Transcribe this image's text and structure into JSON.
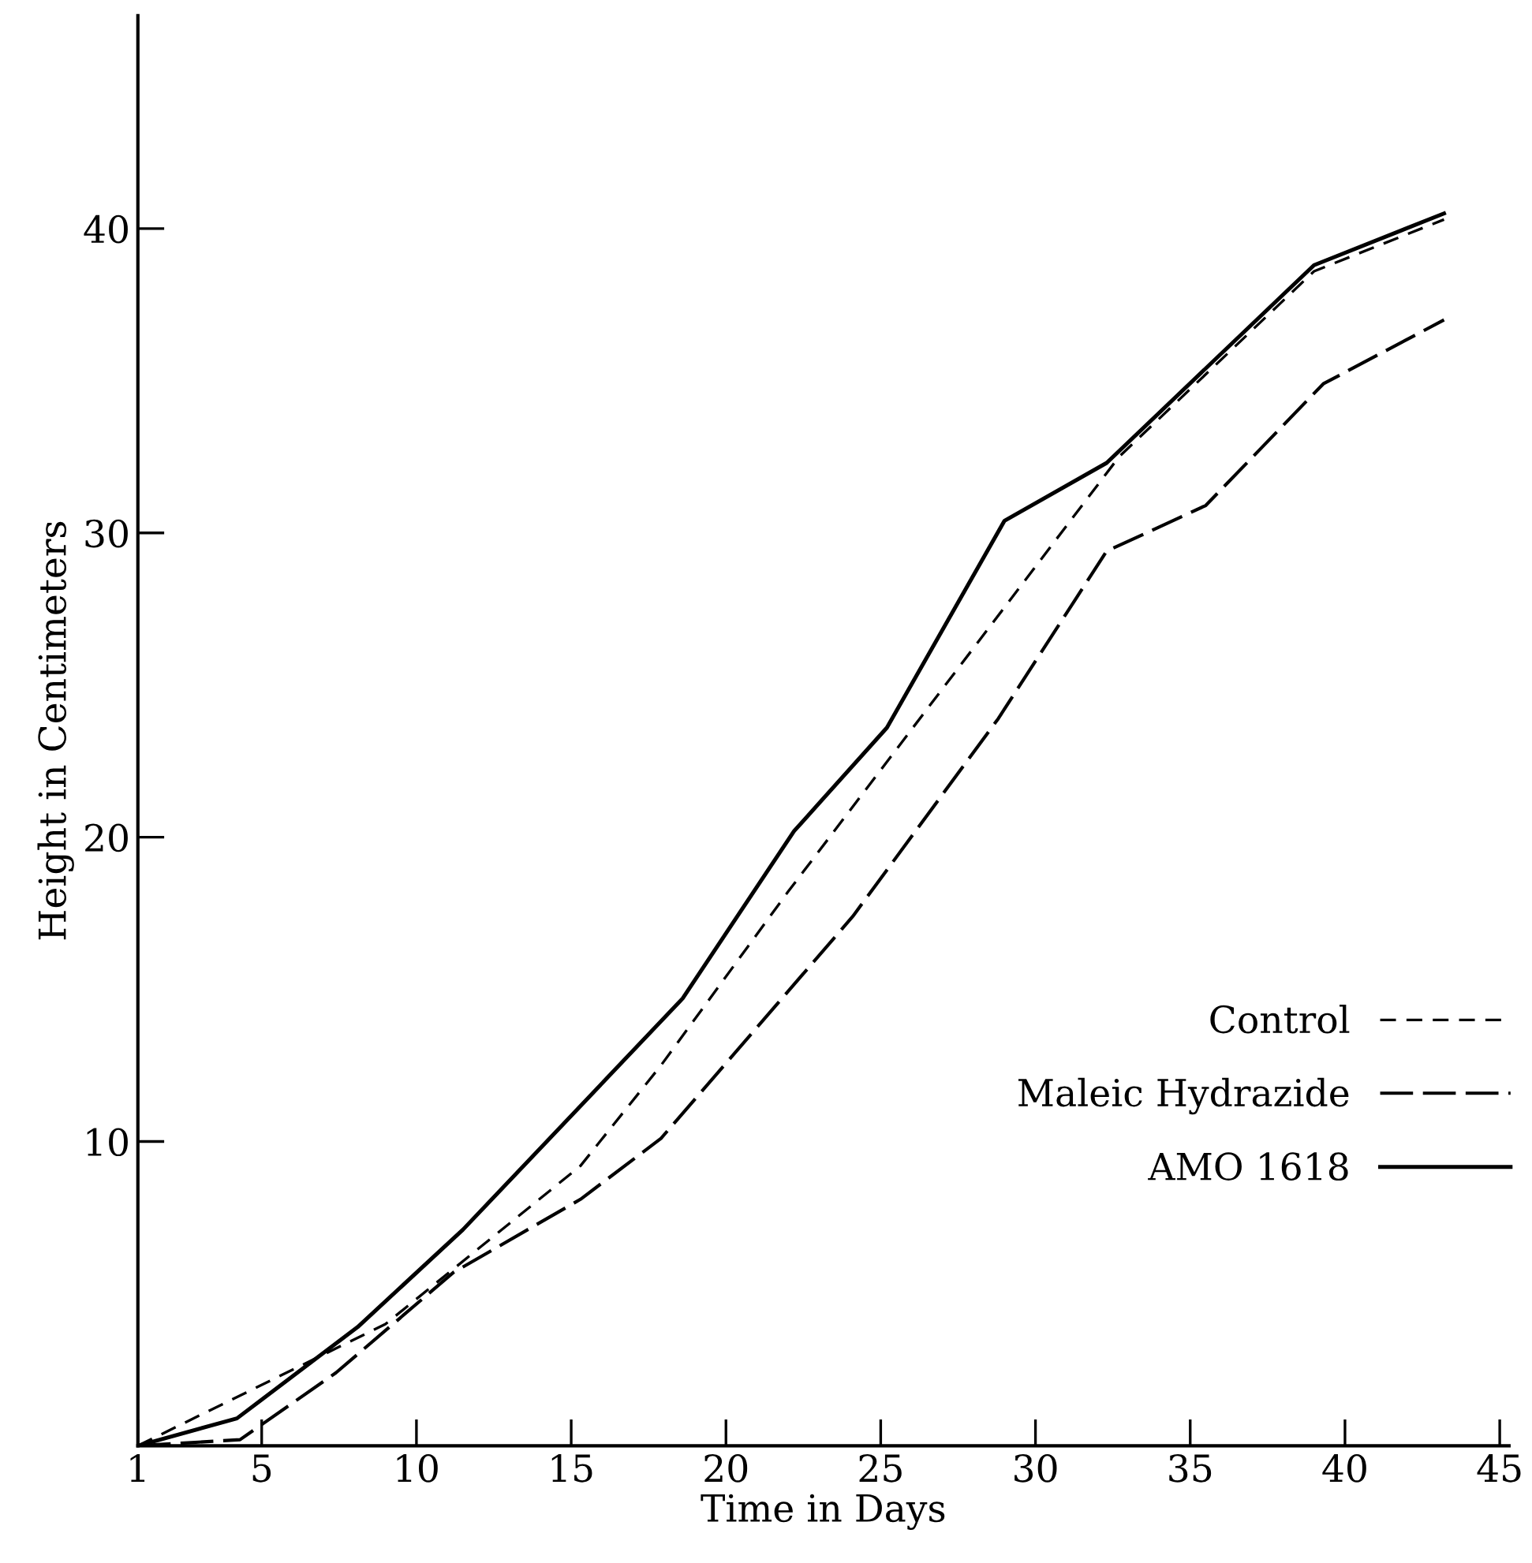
{
  "chart_data": {
    "type": "line",
    "xlabel": "Time in Days",
    "ylabel": "Height in Centimeters",
    "xlim": [
      1,
      45.3
    ],
    "xticks": [
      1,
      5,
      10,
      15,
      20,
      25,
      30,
      35,
      40,
      45
    ],
    "ylim": [
      0,
      47
    ],
    "yticks": [
      10,
      20,
      30,
      40
    ],
    "grid": false,
    "legend": "bottom right",
    "marker": "none",
    "series": [
      {
        "name": "Control",
        "color": "#000000",
        "line_style": "dashed",
        "x": [
          1,
          6.4,
          9,
          15.3,
          17.9,
          22,
          32.7,
          39,
          43.2
        ],
        "values": [
          0,
          2.7,
          4.0,
          9.2,
          12.5,
          18.2,
          32.5,
          38.6,
          40.3
        ]
      },
      {
        "name": "Maleic Hydrazide",
        "color": "#000000",
        "line_style": "longdash",
        "x": [
          1,
          4.3,
          7.4,
          11.2,
          15.3,
          17.9,
          24.1,
          28.8,
          32.3,
          35.5,
          39.3,
          43.2
        ],
        "values": [
          0,
          0.2,
          2.4,
          5.7,
          8.1,
          10.1,
          17.4,
          23.9,
          29.4,
          30.9,
          34.9,
          37.0
        ]
      },
      {
        "name": "AMO 1618",
        "color": "#000000",
        "line_style": "solid",
        "x": [
          1,
          4.2,
          8.1,
          11.5,
          18.6,
          22.2,
          25.2,
          29.0,
          32.3,
          39.0,
          43.2
        ],
        "values": [
          0,
          0.9,
          3.9,
          7.1,
          14.7,
          20.2,
          23.6,
          30.4,
          32.3,
          38.8,
          40.5
        ]
      }
    ]
  }
}
